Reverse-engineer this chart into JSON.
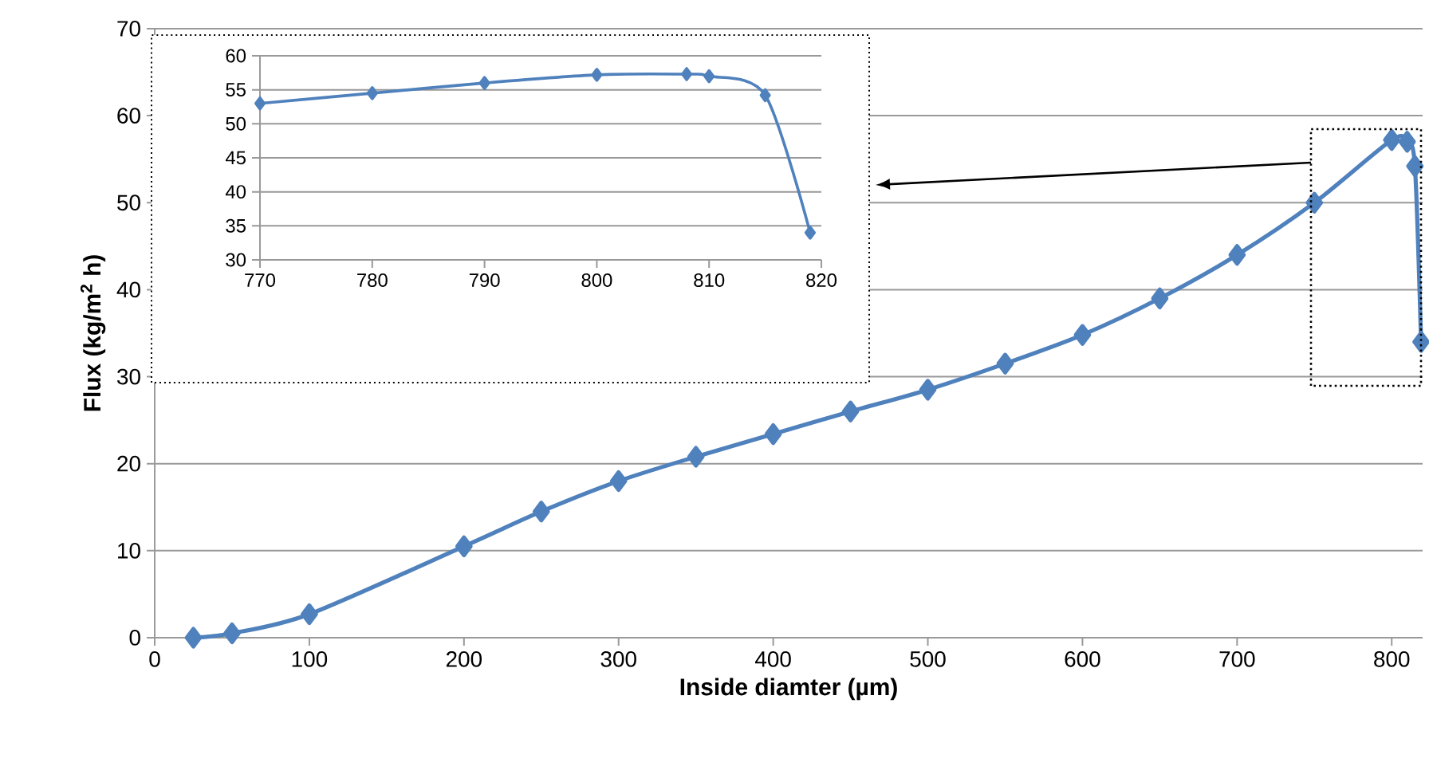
{
  "chart_data": [
    {
      "type": "line",
      "xlabel": "Inside diamter (µm)",
      "ylabel": "Flux (kg/m$^{2}$ h)",
      "x": [
        25,
        50,
        100,
        200,
        250,
        300,
        350,
        400,
        450,
        500,
        550,
        600,
        650,
        700,
        750,
        800,
        808,
        810,
        815,
        819
      ],
      "series": [
        {
          "color": "#4f81bd",
          "values": [
            0,
            0.5,
            2.7,
            10.5,
            14.5,
            18,
            20.8,
            23.4,
            26,
            28.5,
            31.5,
            34.8,
            39,
            44,
            50,
            57.2,
            null,
            57,
            54.2,
            34
          ]
        }
      ],
      "xlim": [
        0,
        820
      ],
      "ylim": [
        0,
        70
      ],
      "xticks": [
        0,
        100,
        200,
        300,
        400,
        500,
        600,
        700,
        800
      ],
      "yticks": [
        0,
        10,
        20,
        30,
        40,
        50,
        60,
        70
      ],
      "grid": "y",
      "marker": "diamond",
      "line_style": "solid"
    },
    {
      "type": "line",
      "x": [
        770,
        780,
        790,
        800,
        808,
        810,
        815,
        819
      ],
      "series": [
        {
          "color": "#4f81bd",
          "values": [
            53,
            54.5,
            56,
            57.2,
            57.3,
            57,
            54.2,
            34
          ]
        }
      ],
      "xlim": [
        770,
        820
      ],
      "ylim": [
        30,
        60
      ],
      "xticks": [
        770,
        780,
        790,
        800,
        810,
        820
      ],
      "yticks": [
        30,
        35,
        40,
        45,
        50,
        55,
        60
      ],
      "grid": "y",
      "marker": "diamond",
      "line_style": "solid"
    }
  ]
}
